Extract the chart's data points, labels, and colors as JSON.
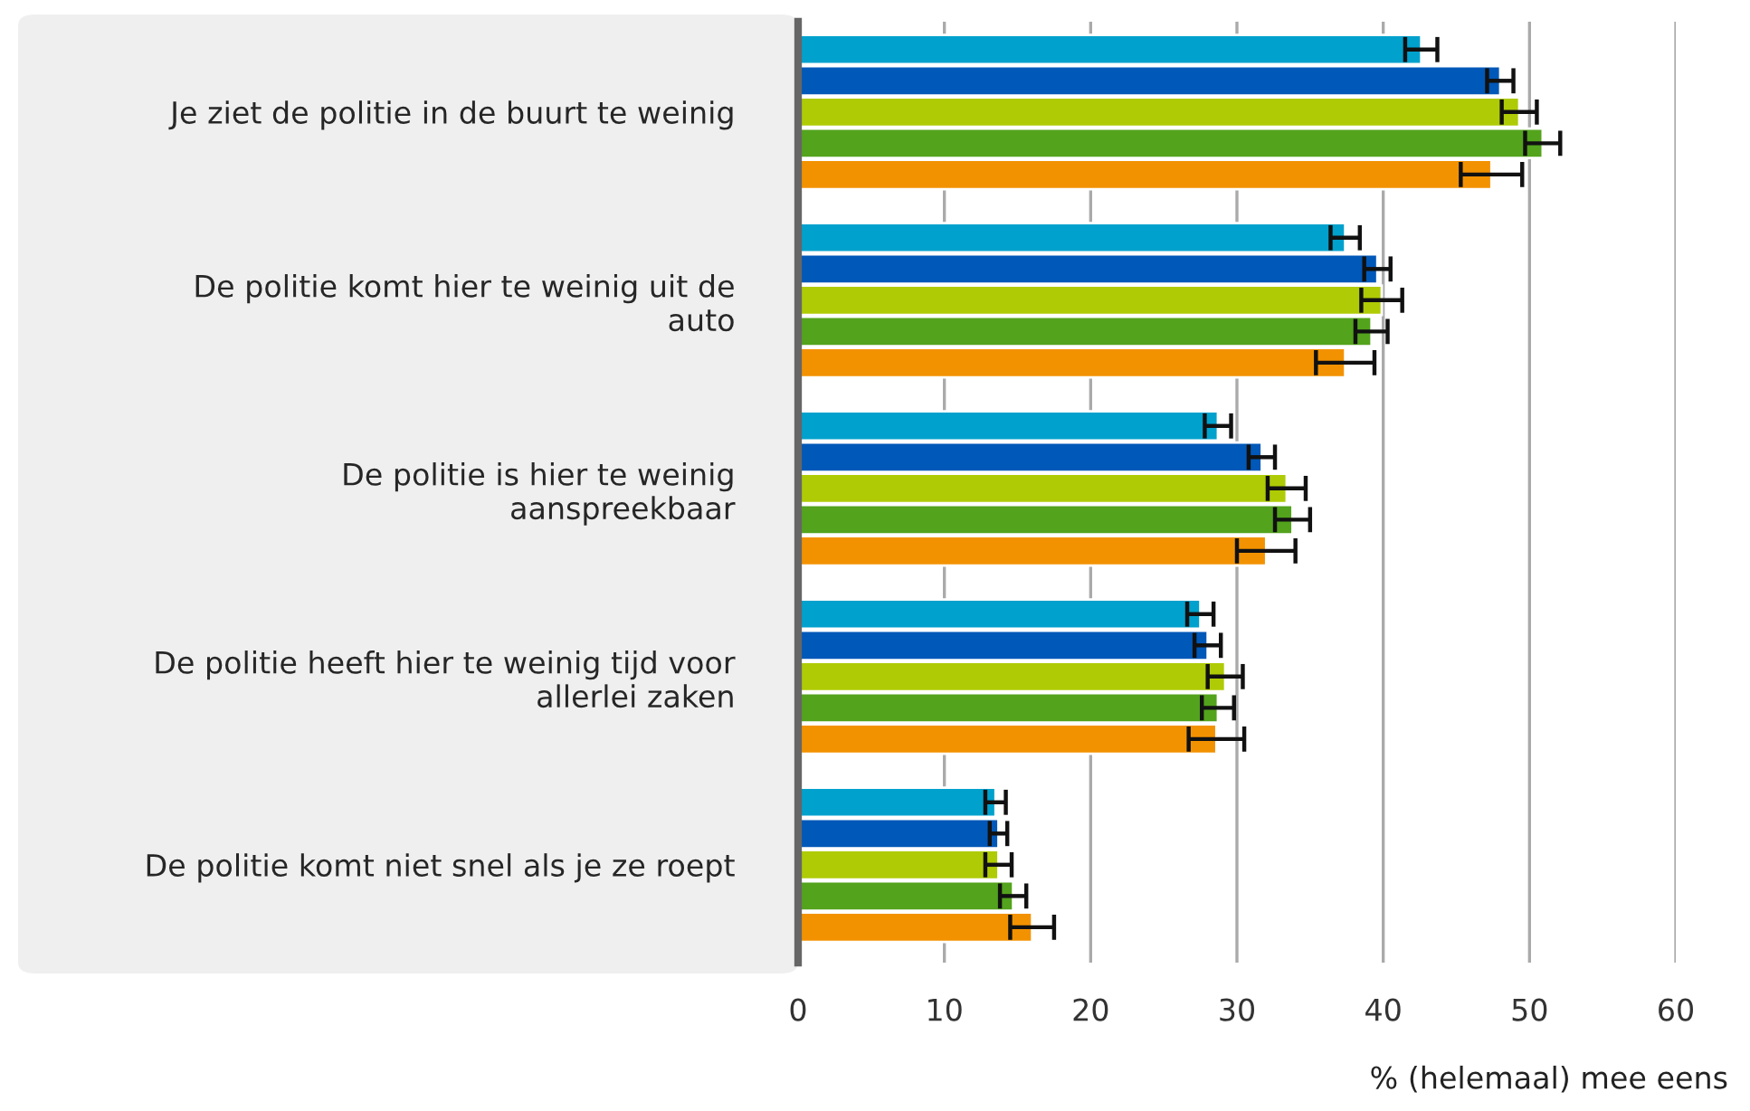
{
  "chart_data": {
    "type": "bar",
    "orientation": "horizontal",
    "xlabel": "% (helemaal) mee eens",
    "categories": [
      "Je ziet de politie in de buurt te weinig",
      "De politie komt hier te weinig uit de\nauto",
      "De politie is hier te weinig\naanspreekbaar",
      "De politie heeft hier te weinig tijd voor\nallerlei zaken",
      "De politie komt niet snel als je ze roept"
    ],
    "series": [
      {
        "color": "#00a1cd",
        "values": [
          42.6,
          37.4,
          28.7,
          27.5,
          13.5
        ],
        "errors": [
          1.1,
          1.0,
          0.9,
          0.9,
          0.7
        ]
      },
      {
        "color": "#0058b8",
        "values": [
          48.0,
          39.6,
          31.7,
          28.0,
          13.7
        ],
        "errors": [
          0.9,
          0.9,
          0.9,
          0.9,
          0.6
        ]
      },
      {
        "color": "#afcb05",
        "values": [
          49.3,
          39.9,
          33.4,
          29.2,
          13.7
        ],
        "errors": [
          1.2,
          1.4,
          1.3,
          1.2,
          0.9
        ]
      },
      {
        "color": "#53a31d",
        "values": [
          50.9,
          39.2,
          33.8,
          28.7,
          14.7
        ],
        "errors": [
          1.2,
          1.1,
          1.2,
          1.1,
          0.9
        ]
      },
      {
        "color": "#f39200",
        "values": [
          47.4,
          37.4,
          32.0,
          28.6,
          16.0
        ],
        "errors": [
          2.1,
          2.0,
          2.0,
          1.9,
          1.5
        ]
      }
    ],
    "xlim": [
      0,
      60
    ],
    "xticks": [
      0,
      10,
      20,
      30,
      40,
      50,
      60
    ],
    "grid": "x"
  }
}
